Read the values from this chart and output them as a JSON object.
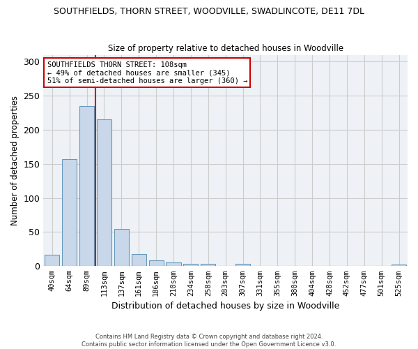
{
  "title1": "SOUTHFIELDS, THORN STREET, WOODVILLE, SWADLINCOTE, DE11 7DL",
  "title2": "Size of property relative to detached houses in Woodville",
  "xlabel": "Distribution of detached houses by size in Woodville",
  "ylabel": "Number of detached properties",
  "footnote1": "Contains HM Land Registry data © Crown copyright and database right 2024.",
  "footnote2": "Contains public sector information licensed under the Open Government Licence v3.0.",
  "bar_color": "#c8d8ea",
  "bar_edge_color": "#6699bb",
  "grid_color": "#cccccc",
  "bg_color": "#eef2f7",
  "red_line_color": "#cc0000",
  "annotation_box_color": "#cc0000",
  "categories": [
    "40sqm",
    "64sqm",
    "89sqm",
    "113sqm",
    "137sqm",
    "161sqm",
    "186sqm",
    "210sqm",
    "234sqm",
    "258sqm",
    "283sqm",
    "307sqm",
    "331sqm",
    "355sqm",
    "380sqm",
    "404sqm",
    "428sqm",
    "452sqm",
    "477sqm",
    "501sqm",
    "525sqm"
  ],
  "values": [
    17,
    157,
    235,
    215,
    55,
    18,
    8,
    5,
    3,
    3,
    0,
    3,
    0,
    0,
    0,
    0,
    0,
    0,
    0,
    0,
    2
  ],
  "red_line_x": 2.5,
  "ylim": [
    0,
    310
  ],
  "yticks": [
    0,
    50,
    100,
    150,
    200,
    250,
    300
  ],
  "annotation_text_line1": "SOUTHFIELDS THORN STREET: 108sqm",
  "annotation_text_line2": "← 49% of detached houses are smaller (345)",
  "annotation_text_line3": "51% of semi-detached houses are larger (360) →"
}
